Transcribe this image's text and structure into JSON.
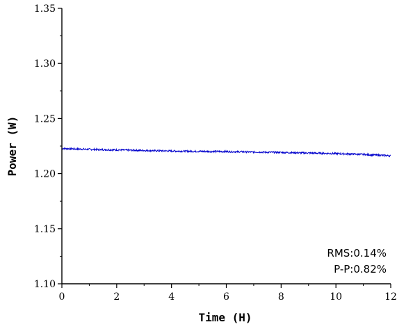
{
  "chart_data": {
    "type": "line",
    "title": "",
    "xlabel": "Time (H)",
    "ylabel": "Power (W)",
    "xlim": [
      0,
      12
    ],
    "ylim": [
      1.1,
      1.35
    ],
    "x_ticks": [
      0,
      2,
      4,
      6,
      8,
      10,
      12
    ],
    "x_tick_labels": [
      "0",
      "2",
      "4",
      "6",
      "8",
      "10",
      "12"
    ],
    "y_ticks": [
      1.1,
      1.15,
      1.2,
      1.25,
      1.3,
      1.35
    ],
    "y_tick_labels": [
      "1.10",
      "1.15",
      "1.20",
      "1.25",
      "1.30",
      "1.35"
    ],
    "grid": false,
    "legend": "none",
    "series": [
      {
        "color": "#0000cc",
        "x": [
          0,
          1,
          2,
          3,
          4,
          5,
          6,
          7,
          8,
          9,
          10,
          11,
          12
        ],
        "y": [
          1.2228,
          1.222,
          1.2215,
          1.221,
          1.2205,
          1.2202,
          1.22,
          1.2196,
          1.2192,
          1.2187,
          1.2182,
          1.2174,
          1.2162
        ]
      }
    ],
    "annotations": [
      "RMS:0.14%",
      "P-P:0.82%"
    ]
  }
}
